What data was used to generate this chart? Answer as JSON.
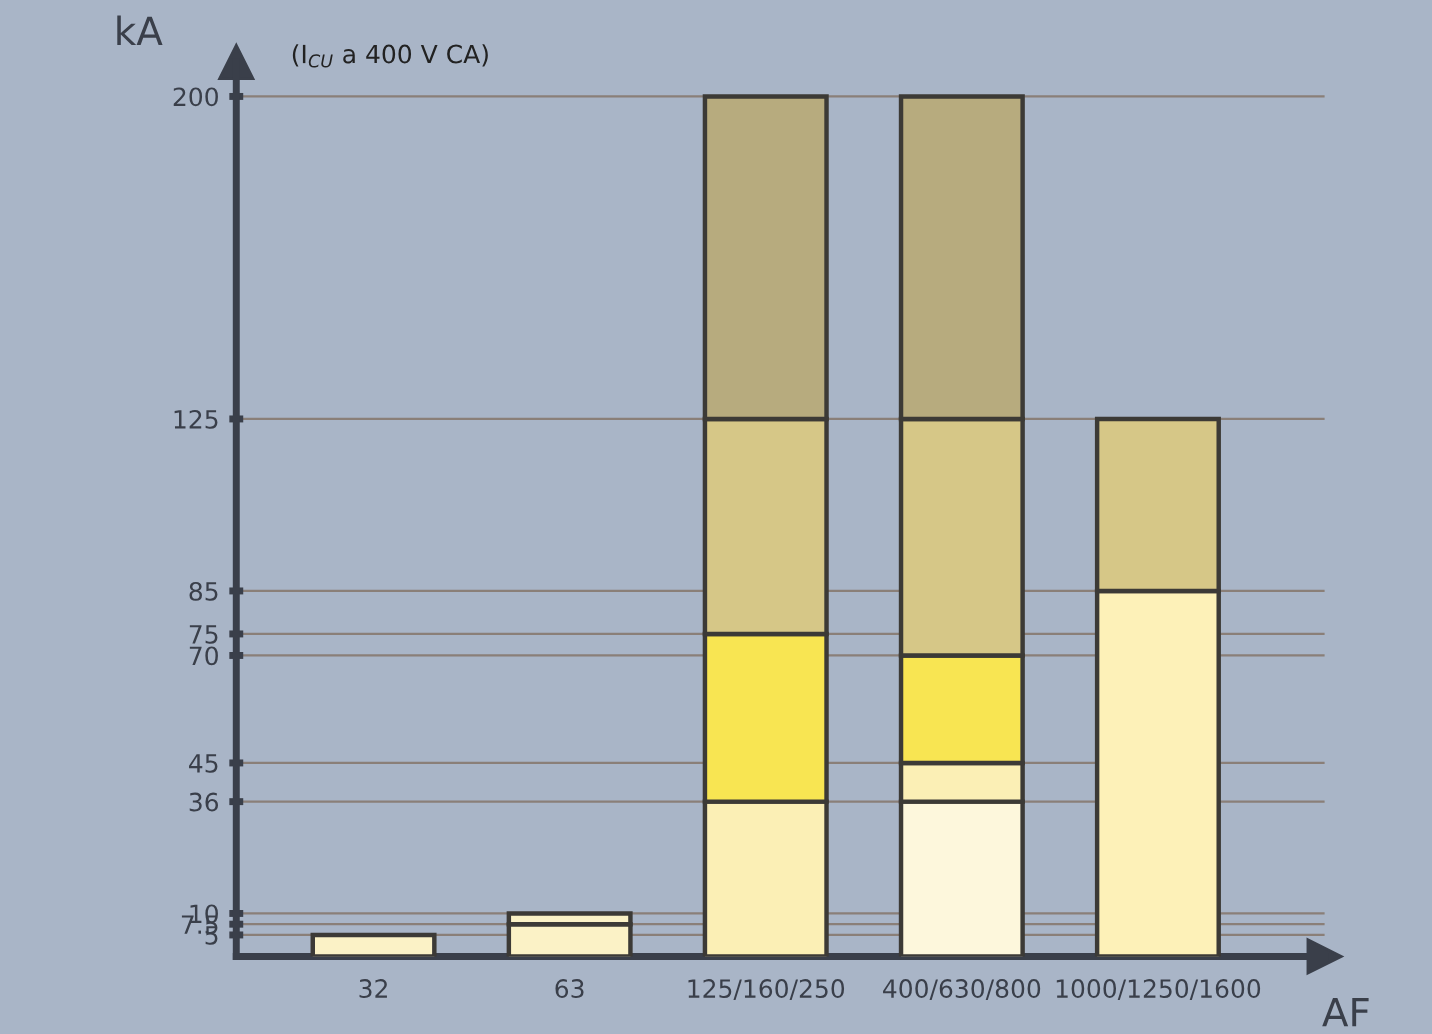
{
  "chart_data": {
    "type": "bar",
    "stacked": true,
    "xlabel": "AF",
    "ylabel": "kA",
    "annotations": [
      "(I$_{CU}$ a 400 V CA)"
    ],
    "categories": [
      "32",
      "63",
      "125/160/250",
      "400/630/800",
      "1000/1250/1600"
    ],
    "series": [
      {
        "colors": [
          "#fbf2c6",
          "#fbf2c6",
          "#fbefb5",
          "#fdf7dc",
          "#fdf1b8"
        ],
        "values": [
          5,
          7.5,
          36,
          36,
          85
        ]
      },
      {
        "colors": [
          "#fbf2c6",
          "#fbf2c6",
          "#f8e552",
          "#fbefb5",
          "#d6c787"
        ],
        "values": [
          null,
          2.5,
          39,
          9,
          40
        ]
      },
      {
        "colors": [
          "#d6c787",
          "#d6c787",
          "#d6c787",
          "#f8e552",
          "#d6c787"
        ],
        "values": [
          null,
          null,
          50,
          25,
          null
        ]
      },
      {
        "colors": [
          "#b7ab7e",
          "#b7ab7e",
          "#b7ab7e",
          "#d6c787",
          "#b7ab7e"
        ],
        "values": [
          null,
          null,
          75,
          55,
          null
        ]
      },
      {
        "colors": [
          "#b7ab7e",
          "#b7ab7e",
          "#b7ab7e",
          "#b7ab7e",
          "#b7ab7e"
        ],
        "values": [
          null,
          null,
          null,
          75,
          null
        ]
      }
    ],
    "ylim": [
      0,
      208
    ],
    "yticks": [
      5,
      7.5,
      10,
      36,
      45,
      70,
      75,
      85,
      125,
      200
    ],
    "grid": "y"
  }
}
